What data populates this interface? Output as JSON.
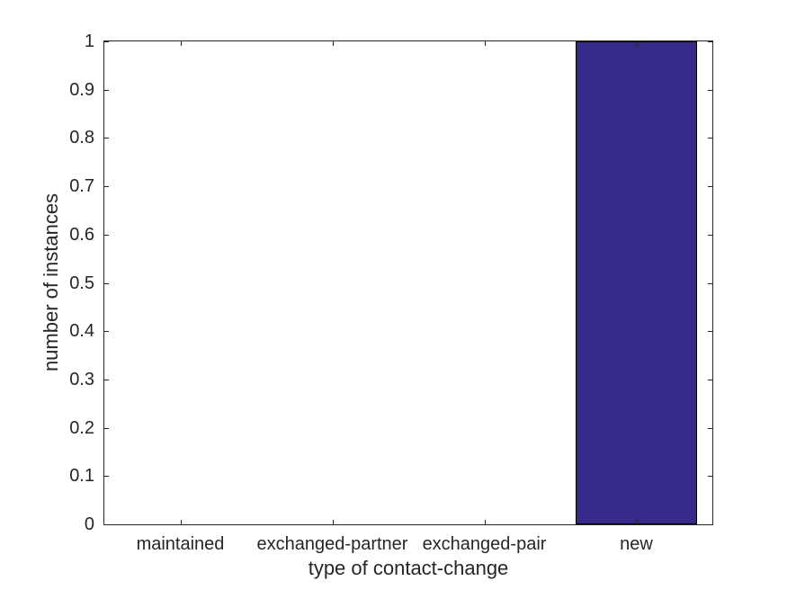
{
  "figure": {
    "background": "#ffffff"
  },
  "chart_data": {
    "type": "bar",
    "title": "",
    "categories": [
      "maintained",
      "exchanged-partner",
      "exchanged-pair",
      "new"
    ],
    "values": [
      0,
      0,
      0,
      1
    ],
    "xlabel": "type of contact-change",
    "ylabel": "number of instances",
    "ylim": [
      0,
      1
    ],
    "yticks": [
      0,
      0.1,
      0.2,
      0.3,
      0.4,
      0.5,
      0.6,
      0.7,
      0.8,
      0.9,
      1
    ],
    "ytick_labels": [
      "0",
      "0.1",
      "0.2",
      "0.3",
      "0.4",
      "0.5",
      "0.6",
      "0.7",
      "0.8",
      "0.9",
      "1"
    ],
    "bar_width_fraction": 0.8,
    "grid": false,
    "legend_position": "none",
    "box": true,
    "tick_direction": "in",
    "colors": {
      "bar_fill": "#352A87",
      "bar_edge": "#000000",
      "axis": "#262626",
      "text": "#262626"
    }
  }
}
